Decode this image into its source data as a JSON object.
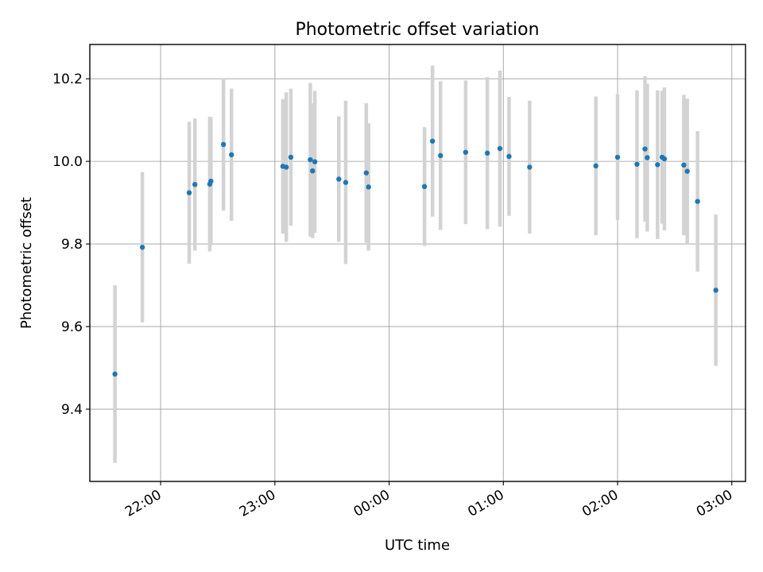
{
  "chart_data": {
    "type": "scatter",
    "title": "Photometric offset variation",
    "xlabel": "UTC time",
    "ylabel": "Photometric offset",
    "x_unit": "UTC clock time (hours past 00:00; values above 24 fall on the following day)",
    "xlim": [
      21.38,
      27.12
    ],
    "ylim": [
      9.225,
      10.283
    ],
    "x_ticks": [
      {
        "v": 22,
        "label": "22:00"
      },
      {
        "v": 23,
        "label": "23:00"
      },
      {
        "v": 24,
        "label": "00:00"
      },
      {
        "v": 25,
        "label": "01:00"
      },
      {
        "v": 26,
        "label": "02:00"
      },
      {
        "v": 27,
        "label": "03:00"
      }
    ],
    "y_ticks": [
      {
        "v": 9.4,
        "label": "9.4"
      },
      {
        "v": 9.6,
        "label": "9.6"
      },
      {
        "v": 9.8,
        "label": "9.8"
      },
      {
        "v": 10.0,
        "label": "10.0"
      },
      {
        "v": 10.2,
        "label": "10.2"
      }
    ],
    "grid": true,
    "colors": {
      "point": "#1f77b4",
      "errorbar": "#d3d3d3",
      "grid": "#b0b0b0"
    },
    "points": [
      {
        "x": 21.6,
        "y": 9.485,
        "err": 0.215
      },
      {
        "x": 21.84,
        "y": 9.792,
        "err": 0.182
      },
      {
        "x": 22.25,
        "y": 9.924,
        "err": 0.172
      },
      {
        "x": 22.3,
        "y": 9.944,
        "err": 0.16
      },
      {
        "x": 22.43,
        "y": 9.945,
        "err": 0.163
      },
      {
        "x": 22.44,
        "y": 9.952,
        "err": 0.155
      },
      {
        "x": 22.55,
        "y": 10.041,
        "err": 0.16
      },
      {
        "x": 22.62,
        "y": 10.016,
        "err": 0.16
      },
      {
        "x": 23.07,
        "y": 9.988,
        "err": 0.163
      },
      {
        "x": 23.1,
        "y": 9.986,
        "err": 0.181
      },
      {
        "x": 23.14,
        "y": 10.01,
        "err": 0.166
      },
      {
        "x": 23.31,
        "y": 10.004,
        "err": 0.186
      },
      {
        "x": 23.33,
        "y": 9.977,
        "err": 0.163
      },
      {
        "x": 23.35,
        "y": 9.999,
        "err": 0.172
      },
      {
        "x": 23.56,
        "y": 9.957,
        "err": 0.152
      },
      {
        "x": 23.62,
        "y": 9.949,
        "err": 0.198
      },
      {
        "x": 23.8,
        "y": 9.972,
        "err": 0.169
      },
      {
        "x": 23.82,
        "y": 9.938,
        "err": 0.154
      },
      {
        "x": 24.31,
        "y": 9.939,
        "err": 0.144
      },
      {
        "x": 24.38,
        "y": 10.049,
        "err": 0.183
      },
      {
        "x": 24.45,
        "y": 10.014,
        "err": 0.18
      },
      {
        "x": 24.67,
        "y": 10.022,
        "err": 0.174
      },
      {
        "x": 24.86,
        "y": 10.02,
        "err": 0.184
      },
      {
        "x": 24.97,
        "y": 10.031,
        "err": 0.189
      },
      {
        "x": 25.05,
        "y": 10.012,
        "err": 0.144
      },
      {
        "x": 25.23,
        "y": 9.986,
        "err": 0.161
      },
      {
        "x": 25.81,
        "y": 9.989,
        "err": 0.168
      },
      {
        "x": 26.0,
        "y": 10.01,
        "err": 0.152
      },
      {
        "x": 26.17,
        "y": 9.993,
        "err": 0.179
      },
      {
        "x": 26.24,
        "y": 10.03,
        "err": 0.176
      },
      {
        "x": 26.26,
        "y": 10.009,
        "err": 0.179
      },
      {
        "x": 26.35,
        "y": 9.992,
        "err": 0.18
      },
      {
        "x": 26.39,
        "y": 10.01,
        "err": 0.161
      },
      {
        "x": 26.41,
        "y": 10.006,
        "err": 0.173
      },
      {
        "x": 26.58,
        "y": 9.991,
        "err": 0.17
      },
      {
        "x": 26.61,
        "y": 9.976,
        "err": 0.176
      },
      {
        "x": 26.7,
        "y": 9.903,
        "err": 0.17
      },
      {
        "x": 26.86,
        "y": 9.688,
        "err": 0.183
      }
    ]
  }
}
